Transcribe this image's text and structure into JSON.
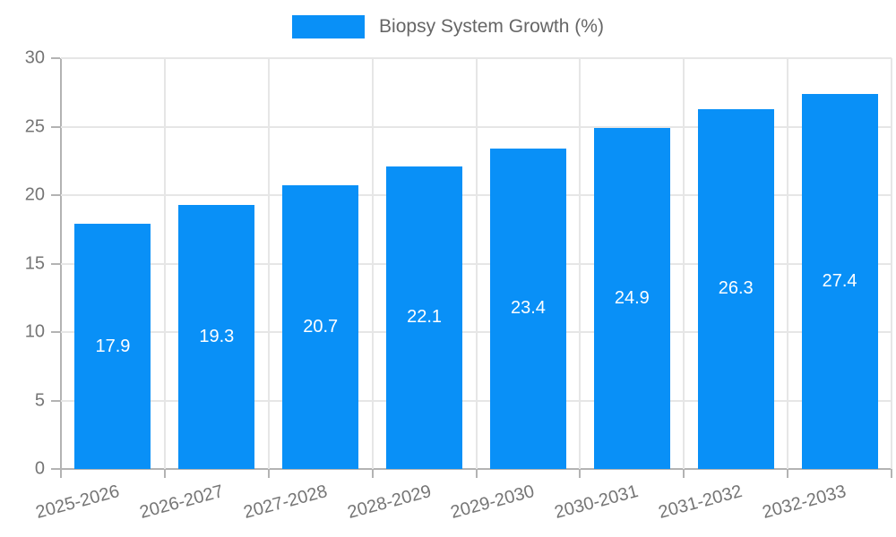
{
  "chart_data": {
    "type": "bar",
    "legend": {
      "label": "Biopsy System Growth (%)",
      "position": "top-center"
    },
    "categories": [
      "2025-2026",
      "2026-2027",
      "2027-2028",
      "2028-2029",
      "2029-2030",
      "2030-2031",
      "2031-2032",
      "2032-2033"
    ],
    "series": [
      {
        "name": "Biopsy System Growth (%)",
        "values": [
          17.9,
          19.3,
          20.7,
          22.1,
          23.4,
          24.9,
          26.3,
          27.4
        ]
      }
    ],
    "value_labels": [
      "17.9",
      "19.3",
      "20.7",
      "22.1",
      "23.4",
      "24.9",
      "26.3",
      "27.4"
    ],
    "xlabel": "",
    "ylabel": "",
    "ylim": [
      0,
      30
    ],
    "yticks": [
      0,
      5,
      10,
      15,
      20,
      25,
      30
    ],
    "grid": true,
    "colors": {
      "bar": "#0990f7",
      "value_label": "#ffffff",
      "axis_line": "#b3b3b3",
      "grid_line": "#e6e6e6",
      "tick_text": "#757575",
      "legend_text": "#666666",
      "background": "#ffffff"
    }
  }
}
